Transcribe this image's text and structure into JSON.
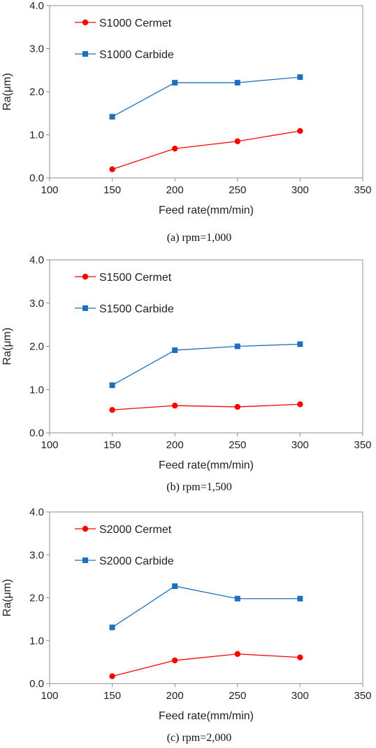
{
  "chart_data": [
    {
      "type": "line",
      "caption": "(a)  rpm=1,000",
      "xlabel": "Feed rate(mm/min)",
      "ylabel": "Ra(μm)",
      "xlim": [
        100,
        350
      ],
      "ylim": [
        0,
        4
      ],
      "x_ticks": [
        "100",
        "150",
        "200",
        "250",
        "300",
        "350"
      ],
      "y_ticks": [
        "0.0",
        "1.0",
        "2.0",
        "3.0",
        "4.0"
      ],
      "legend_position": "top-left",
      "grid": false,
      "x": [
        150,
        200,
        250,
        300
      ],
      "series": [
        {
          "name": "S1000 Cermet",
          "color": "#ff0000",
          "marker": "circle",
          "values": [
            0.2,
            0.68,
            0.85,
            1.09
          ]
        },
        {
          "name": "S1000 Carbide",
          "color": "#1f6fc0",
          "marker": "square",
          "values": [
            1.42,
            2.21,
            2.21,
            2.34
          ]
        }
      ]
    },
    {
      "type": "line",
      "caption": "(b)  rpm=1,500",
      "xlabel": "Feed rate(mm/min)",
      "ylabel": "Ra(μm)",
      "xlim": [
        100,
        350
      ],
      "ylim": [
        0,
        4
      ],
      "x_ticks": [
        "100",
        "150",
        "200",
        "250",
        "300",
        "350"
      ],
      "y_ticks": [
        "0.0",
        "1.0",
        "2.0",
        "3.0",
        "4.0"
      ],
      "legend_position": "top-left",
      "grid": false,
      "x": [
        150,
        200,
        250,
        300
      ],
      "series": [
        {
          "name": "S1500 Cermet",
          "color": "#ff0000",
          "marker": "circle",
          "values": [
            0.53,
            0.63,
            0.6,
            0.66
          ]
        },
        {
          "name": "S1500 Carbide",
          "color": "#1f6fc0",
          "marker": "square",
          "values": [
            1.1,
            1.91,
            2.0,
            2.05
          ]
        }
      ]
    },
    {
      "type": "line",
      "caption": "(c) rpm=2,000",
      "xlabel": "Feed rate(mm/min)",
      "ylabel": "Ra(μm)",
      "xlim": [
        100,
        350
      ],
      "ylim": [
        0,
        4
      ],
      "x_ticks": [
        "100",
        "150",
        "200",
        "250",
        "300",
        "350"
      ],
      "y_ticks": [
        "0.0",
        "1.0",
        "2.0",
        "3.0",
        "4.0"
      ],
      "legend_position": "top-left",
      "grid": false,
      "x": [
        150,
        200,
        250,
        300
      ],
      "series": [
        {
          "name": "S2000 Cermet",
          "color": "#ff0000",
          "marker": "circle",
          "values": [
            0.17,
            0.54,
            0.69,
            0.61
          ]
        },
        {
          "name": "S2000 Carbide",
          "color": "#1f6fc0",
          "marker": "square",
          "values": [
            1.31,
            2.27,
            1.98,
            1.98
          ]
        }
      ]
    }
  ]
}
